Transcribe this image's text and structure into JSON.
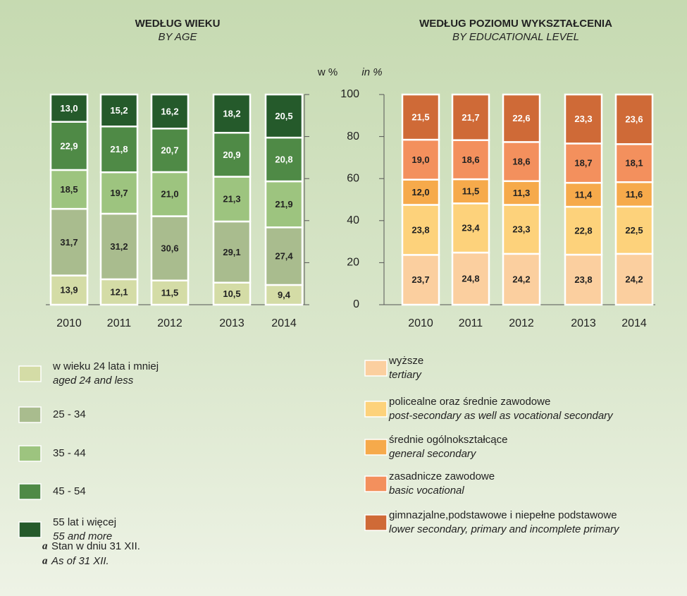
{
  "chart_data": [
    {
      "type": "bar",
      "stacked": true,
      "title": "WEDŁUG WIEKU",
      "subtitle": "BY AGE",
      "categories": [
        "2010",
        "2011",
        "2012",
        "2013",
        "2014"
      ],
      "ylim": [
        0,
        100
      ],
      "yticks": [
        0,
        20,
        40,
        60,
        80,
        100
      ],
      "series": [
        {
          "name": "w wieku 24 lata i mniej",
          "name_en": "aged 24 and less",
          "color": "#d4dca6",
          "values": [
            13.9,
            12.1,
            11.5,
            10.5,
            9.4
          ],
          "value_labels": [
            "13,9",
            "12,1",
            "11,5",
            "10,5",
            "9,4"
          ]
        },
        {
          "name": "25 - 34",
          "color": "#a9bc8e",
          "values": [
            31.7,
            31.2,
            30.6,
            29.1,
            27.4
          ],
          "value_labels": [
            "31,7",
            "31,2",
            "30,6",
            "29,1",
            "27,4"
          ]
        },
        {
          "name": "35 - 44",
          "color": "#9dc47f",
          "values": [
            18.5,
            19.7,
            21.0,
            21.3,
            21.9
          ],
          "value_labels": [
            "18,5",
            "19,7",
            "21,0",
            "21,3",
            "21,9"
          ]
        },
        {
          "name": "45 - 54",
          "color": "#4f8a46",
          "values": [
            22.9,
            21.8,
            20.7,
            20.9,
            20.8
          ],
          "value_labels": [
            "22,9",
            "21,8",
            "20,7",
            "20,9",
            "20,8"
          ]
        },
        {
          "name": "55 lat i więcej",
          "name_en": "55 and more",
          "color": "#255a2b",
          "values": [
            13.0,
            15.2,
            16.2,
            18.2,
            20.5
          ],
          "value_labels": [
            "13,0",
            "15,2",
            "16,2",
            "18,2",
            "20,5"
          ]
        }
      ]
    },
    {
      "type": "bar",
      "stacked": true,
      "title": "WEDŁUG POZIOMU WYKSZTAŁCENIA",
      "subtitle": "BY EDUCATIONAL LEVEL",
      "y_label": "w %",
      "y_label_en": "in %",
      "categories": [
        "2010",
        "2011",
        "2012",
        "2013",
        "2014"
      ],
      "ylim": [
        0,
        100
      ],
      "yticks": [
        0,
        20,
        40,
        60,
        80,
        100
      ],
      "series": [
        {
          "name": "wyższe",
          "name_en": "tertiary",
          "color": "#fbcf9f",
          "values": [
            23.7,
            24.8,
            24.2,
            23.8,
            24.2
          ],
          "value_labels": [
            "23,7",
            "24,8",
            "24,2",
            "23,8",
            "24,2"
          ]
        },
        {
          "name": "policealne oraz średnie zawodowe",
          "name_en": "post-secondary as well as vocational secondary",
          "color": "#fdd27b",
          "values": [
            23.8,
            23.4,
            23.3,
            22.8,
            22.5
          ],
          "value_labels": [
            "23,8",
            "23,4",
            "23,3",
            "22,8",
            "22,5"
          ]
        },
        {
          "name": "średnie ogólnokształcące",
          "name_en": "general secondary",
          "color": "#f6aa4b",
          "values": [
            12.0,
            11.5,
            11.3,
            11.4,
            11.6
          ],
          "value_labels": [
            "12,0",
            "11,5",
            "11,3",
            "11,4",
            "11,6"
          ]
        },
        {
          "name": "zasadnicze zawodowe",
          "name_en": "basic vocational",
          "color": "#f3905d",
          "values": [
            19.0,
            18.6,
            18.6,
            18.7,
            18.1
          ],
          "value_labels": [
            "19,0",
            "18,6",
            "18,6",
            "18,7",
            "18,1"
          ]
        },
        {
          "name": "gimnazjalne,podstawowe i niepełne podstawowe",
          "name_en": "lower secondary, primary and incomplete primary",
          "color": "#cf6a37",
          "values": [
            21.5,
            21.7,
            22.6,
            23.3,
            23.6
          ],
          "value_labels": [
            "21,5",
            "21,7",
            "22,6",
            "23,3",
            "23,6"
          ]
        }
      ]
    }
  ],
  "footnotes": {
    "marker": "a",
    "lines": [
      "Stan w dniu 31 XII.",
      "As of 31 XII."
    ]
  }
}
